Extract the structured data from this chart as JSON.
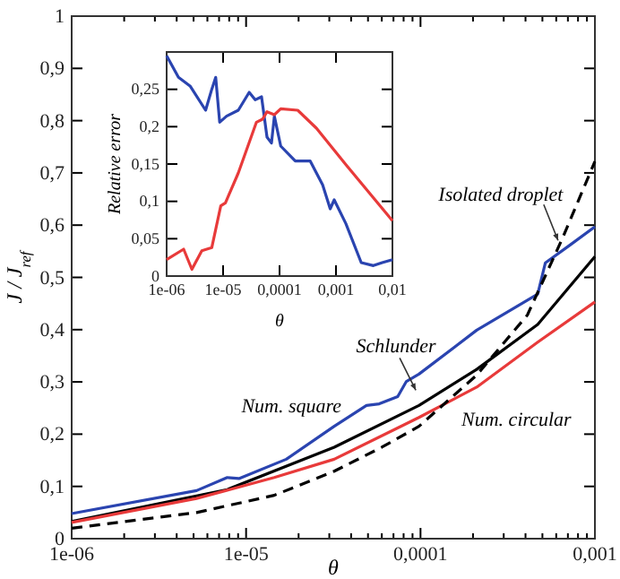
{
  "chart_data": [
    {
      "type": "line",
      "xlabel": "θ",
      "ylabel": "J / J$_{ref}$",
      "log": "x",
      "xlim": [
        1e-06,
        0.001
      ],
      "ylim": [
        0,
        1
      ],
      "xticks": [
        {
          "value": 1e-06,
          "label": "1e-06"
        },
        {
          "value": 2e-06,
          "label": null
        },
        {
          "value": 3e-06,
          "label": null
        },
        {
          "value": 4e-06,
          "label": null
        },
        {
          "value": 5e-06,
          "label": null
        },
        {
          "value": 6e-06,
          "label": null
        },
        {
          "value": 7e-06,
          "label": null
        },
        {
          "value": 8e-06,
          "label": null
        },
        {
          "value": 9e-06,
          "label": null
        },
        {
          "value": 1e-05,
          "label": "1e-05"
        },
        {
          "value": 2e-05,
          "label": null
        },
        {
          "value": 3e-05,
          "label": null
        },
        {
          "value": 4e-05,
          "label": null
        },
        {
          "value": 5e-05,
          "label": null
        },
        {
          "value": 6e-05,
          "label": null
        },
        {
          "value": 7e-05,
          "label": null
        },
        {
          "value": 8e-05,
          "label": null
        },
        {
          "value": 9e-05,
          "label": null
        },
        {
          "value": 0.0001,
          "label": "0,0001"
        },
        {
          "value": 0.0002,
          "label": null
        },
        {
          "value": 0.0003,
          "label": null
        },
        {
          "value": 0.0004,
          "label": null
        },
        {
          "value": 0.0005,
          "label": null
        },
        {
          "value": 0.0006,
          "label": null
        },
        {
          "value": 0.0007,
          "label": null
        },
        {
          "value": 0.0008,
          "label": null
        },
        {
          "value": 0.0009,
          "label": null
        },
        {
          "value": 0.001,
          "label": "0,001"
        }
      ],
      "yticks": [
        {
          "value": 0,
          "label": "0"
        },
        {
          "value": 0.1,
          "label": "0,1"
        },
        {
          "value": 0.2,
          "label": "0,2"
        },
        {
          "value": 0.3,
          "label": "0,3"
        },
        {
          "value": 0.4,
          "label": "0,4"
        },
        {
          "value": 0.5,
          "label": "0,5"
        },
        {
          "value": 0.6,
          "label": "0,6"
        },
        {
          "value": 0.7,
          "label": "0,7"
        },
        {
          "value": 0.8,
          "label": "0,8"
        },
        {
          "value": 0.9,
          "label": "0,9"
        },
        {
          "value": 1,
          "label": "1"
        }
      ],
      "marker": "none",
      "series": [
        {
          "color": "#2a44b0",
          "x": [
            1e-06,
            5.2e-06,
            7.8e-06,
            9.1e-06,
            1.7e-05,
            3.2e-05,
            4.9e-05,
            5.8e-05,
            7.4e-05,
            8.3e-05,
            9.8e-05,
            0.00021,
            0.00047,
            0.00052,
            0.00072,
            0.001
          ],
          "values": [
            0.048,
            0.092,
            0.117,
            0.115,
            0.152,
            0.215,
            0.255,
            0.258,
            0.272,
            0.301,
            0.315,
            0.399,
            0.468,
            0.528,
            0.562,
            0.597
          ]
        },
        {
          "color": "#000000",
          "x": [
            1e-06,
            7.8e-06,
            3.2e-05,
            9.8e-05,
            0.00021,
            0.00047,
            0.001
          ],
          "values": [
            0.033,
            0.094,
            0.175,
            0.255,
            0.324,
            0.41,
            0.54
          ]
        },
        {
          "color": "#e83a3a",
          "x": [
            1e-06,
            5.2e-06,
            1.45e-05,
            3.2e-05,
            9.8e-05,
            0.00021,
            0.00047,
            0.001
          ],
          "values": [
            0.031,
            0.077,
            0.117,
            0.152,
            0.232,
            0.29,
            0.376,
            0.453
          ]
        },
        {
          "color": "#000000",
          "line_style": "dashed",
          "x": [
            1e-06,
            5.2e-06,
            1.45e-05,
            3.2e-05,
            6e-05,
            9.8e-05,
            0.00021,
            0.00041,
            0.00065,
            0.001
          ],
          "values": [
            0.02,
            0.05,
            0.083,
            0.129,
            0.175,
            0.215,
            0.313,
            0.428,
            0.574,
            0.722
          ]
        }
      ],
      "annotations": [
        "Isolated droplet",
        "Schlunder",
        "Num. square",
        "Num. circular"
      ]
    },
    {
      "type": "line",
      "xlabel": "θ",
      "ylabel": "Relative error",
      "log": "x",
      "xlim": [
        1e-06,
        0.01
      ],
      "ylim": [
        0,
        0.3
      ],
      "xticks": [
        {
          "value": 1e-06,
          "label": "1e-06"
        },
        {
          "value": 1e-05,
          "label": "1e-05"
        },
        {
          "value": 0.0001,
          "label": "0,0001"
        },
        {
          "value": 0.001,
          "label": "0,001"
        },
        {
          "value": 0.01,
          "label": "0,01"
        }
      ],
      "yticks": [
        {
          "value": 0,
          "label": "0"
        },
        {
          "value": 0.05,
          "label": "0,05"
        },
        {
          "value": 0.1,
          "label": "0,1"
        },
        {
          "value": 0.15,
          "label": "0,15"
        },
        {
          "value": 0.2,
          "label": "0,2"
        },
        {
          "value": 0.25,
          "label": "0,25"
        }
      ],
      "marker": "none",
      "series": [
        {
          "color": "#2a44b0",
          "x": [
            1e-06,
            1.62e-06,
            2.63e-06,
            4.9e-06,
            6.3e-06,
            7.4e-06,
            8.7e-06,
            1.15e-05,
            1.86e-05,
            2.9e-05,
            3.7e-05,
            4.8e-05,
            6e-05,
            7.2e-05,
            8.1e-05,
            0.000105,
            0.00019,
            0.00035,
            0.00058,
            0.00079,
            0.00093,
            0.0015,
            0.0028,
            0.0046,
            0.0066,
            0.01
          ],
          "values": [
            0.295,
            0.266,
            0.254,
            0.222,
            0.25,
            0.266,
            0.206,
            0.214,
            0.222,
            0.246,
            0.236,
            0.24,
            0.186,
            0.178,
            0.214,
            0.174,
            0.154,
            0.154,
            0.122,
            0.09,
            0.102,
            0.07,
            0.018,
            0.014,
            0.018,
            0.022
          ]
        },
        {
          "color": "#e83a3a",
          "x": [
            1e-06,
            2e-06,
            2.8e-06,
            4.2e-06,
            6.3e-06,
            9.1e-06,
            1.1e-05,
            1.86e-05,
            3.9e-05,
            5e-05,
            6e-05,
            8.1e-05,
            0.000105,
            0.00021,
            0.00045,
            0.0015,
            0.01
          ],
          "values": [
            0.022,
            0.036,
            0.009,
            0.034,
            0.038,
            0.094,
            0.098,
            0.138,
            0.206,
            0.21,
            0.22,
            0.216,
            0.224,
            0.222,
            0.198,
            0.149,
            0.074
          ]
        }
      ]
    }
  ]
}
